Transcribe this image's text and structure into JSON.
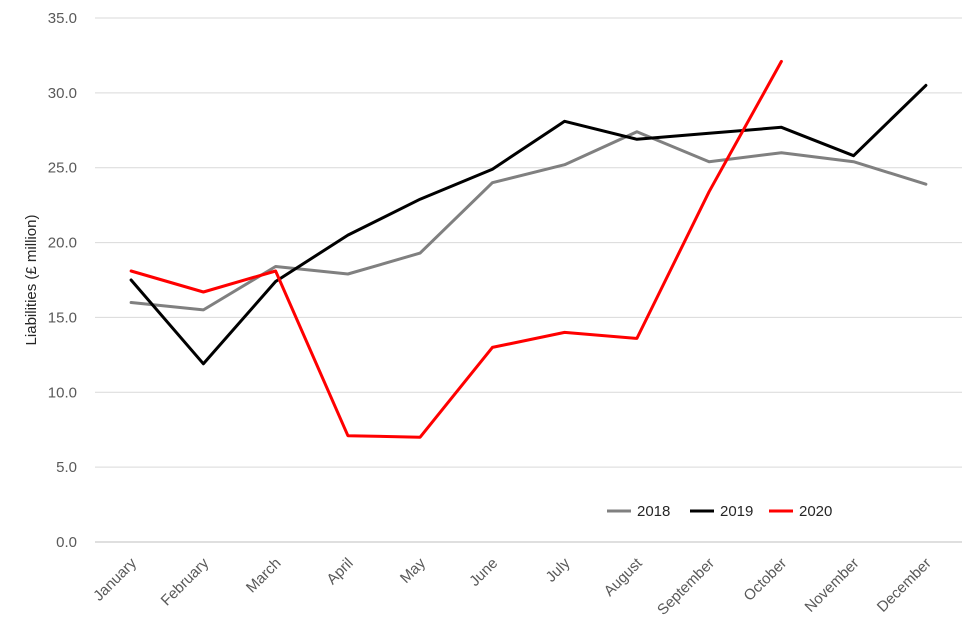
{
  "chart_data": {
    "type": "line",
    "title": "",
    "xlabel": "",
    "ylabel": "Liabilities (£ million)",
    "categories": [
      "January",
      "February",
      "March",
      "April",
      "May",
      "June",
      "July",
      "August",
      "September",
      "October",
      "November",
      "December"
    ],
    "ylim": [
      0,
      35
    ],
    "yticks": [
      0,
      5,
      10,
      15,
      20,
      25,
      30,
      35
    ],
    "ytick_labels": [
      "0.0",
      "5.0",
      "10.0",
      "15.0",
      "20.0",
      "25.0",
      "30.0",
      "35.0"
    ],
    "grid": true,
    "legend": "bottom-right",
    "series": [
      {
        "name": "2018",
        "color": "#808080",
        "values": [
          16.0,
          15.5,
          18.4,
          17.9,
          19.3,
          24.0,
          25.2,
          27.4,
          25.4,
          26.0,
          25.4,
          23.9
        ]
      },
      {
        "name": "2019",
        "color": "#000000",
        "values": [
          17.5,
          11.9,
          17.4,
          20.5,
          22.9,
          24.9,
          28.1,
          26.9,
          27.3,
          27.7,
          25.8,
          30.5
        ]
      },
      {
        "name": "2020",
        "color": "#ff0000",
        "values": [
          18.1,
          16.7,
          18.1,
          7.1,
          7.0,
          13.0,
          14.0,
          13.6,
          23.4,
          32.1,
          null,
          null
        ]
      }
    ]
  }
}
